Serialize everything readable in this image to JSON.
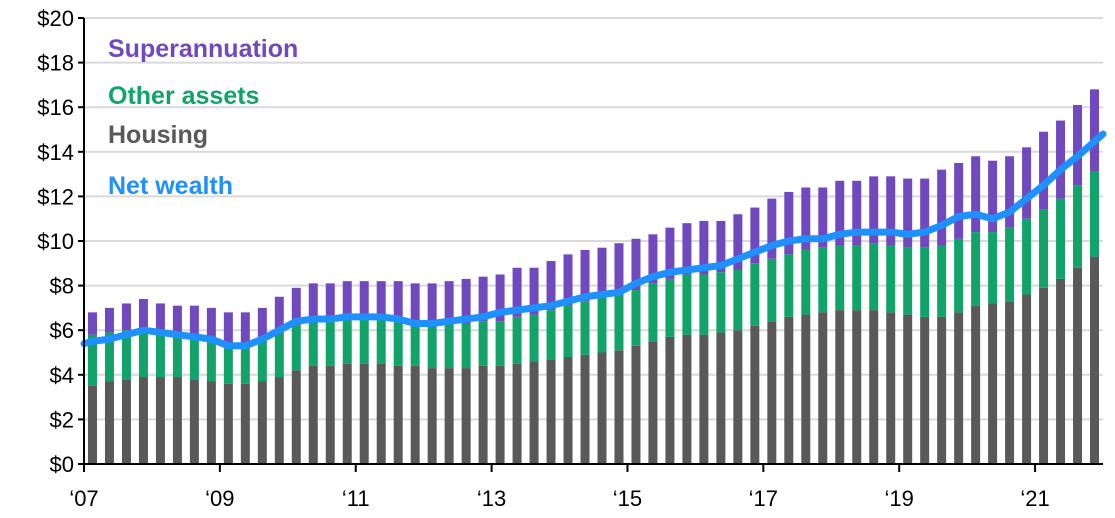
{
  "chart_data": {
    "type": "bar",
    "stacked": true,
    "title": "",
    "xlabel": "",
    "ylabel": "",
    "ylim": [
      0,
      20
    ],
    "y_ticks": [
      "$0",
      "$2",
      "$4",
      "$6",
      "$8",
      "$10",
      "$12",
      "$14",
      "$16",
      "$18",
      "$20"
    ],
    "x_ticks": [
      "‘07",
      "‘09",
      "‘11",
      "‘13",
      "‘15",
      "‘17",
      "‘19",
      "‘21"
    ],
    "grid": true,
    "legend_position": "top-left",
    "x_range": [
      2007.0,
      2022.0
    ],
    "x": [
      2007.125,
      2007.375,
      2007.625,
      2007.875,
      2008.125,
      2008.375,
      2008.625,
      2008.875,
      2009.125,
      2009.375,
      2009.625,
      2009.875,
      2010.125,
      2010.375,
      2010.625,
      2010.875,
      2011.125,
      2011.375,
      2011.625,
      2011.875,
      2012.125,
      2012.375,
      2012.625,
      2012.875,
      2013.125,
      2013.375,
      2013.625,
      2013.875,
      2014.125,
      2014.375,
      2014.625,
      2014.875,
      2015.125,
      2015.375,
      2015.625,
      2015.875,
      2016.125,
      2016.375,
      2016.625,
      2016.875,
      2017.125,
      2017.375,
      2017.625,
      2017.875,
      2018.125,
      2018.375,
      2018.625,
      2018.875,
      2019.125,
      2019.375,
      2019.625,
      2019.875,
      2020.125,
      2020.375,
      2020.625,
      2020.875,
      2021.125,
      2021.375,
      2021.625,
      2021.875
    ],
    "series": [
      {
        "name": "Housing",
        "color": "#595959",
        "values": [
          3.5,
          3.7,
          3.8,
          3.9,
          3.9,
          3.9,
          3.8,
          3.7,
          3.6,
          3.6,
          3.7,
          3.9,
          4.2,
          4.4,
          4.4,
          4.5,
          4.5,
          4.5,
          4.4,
          4.4,
          4.3,
          4.3,
          4.3,
          4.4,
          4.4,
          4.5,
          4.6,
          4.7,
          4.8,
          4.9,
          5.0,
          5.1,
          5.3,
          5.5,
          5.7,
          5.8,
          5.8,
          5.9,
          6.0,
          6.2,
          6.4,
          6.6,
          6.7,
          6.8,
          6.9,
          6.9,
          6.9,
          6.8,
          6.7,
          6.6,
          6.6,
          6.8,
          7.1,
          7.2,
          7.3,
          7.6,
          7.9,
          8.3,
          8.8,
          9.3
        ]
      },
      {
        "name": "Other assets",
        "color": "#12a36b",
        "values": [
          2.3,
          2.2,
          2.2,
          2.2,
          2.0,
          2.0,
          2.0,
          1.9,
          1.8,
          1.8,
          1.9,
          2.0,
          2.0,
          2.0,
          2.0,
          2.0,
          2.0,
          2.0,
          2.0,
          1.9,
          1.9,
          2.0,
          2.0,
          2.0,
          2.0,
          2.1,
          2.1,
          2.2,
          2.3,
          2.4,
          2.5,
          2.5,
          2.5,
          2.6,
          2.6,
          2.7,
          2.7,
          2.7,
          2.7,
          2.8,
          2.8,
          2.8,
          2.9,
          2.9,
          2.9,
          2.9,
          3.0,
          3.0,
          3.0,
          3.1,
          3.2,
          3.3,
          3.3,
          3.2,
          3.3,
          3.4,
          3.5,
          3.6,
          3.7,
          3.8
        ]
      },
      {
        "name": "Superannuation",
        "color": "#7049bf",
        "values": [
          1.0,
          1.1,
          1.2,
          1.3,
          1.3,
          1.2,
          1.3,
          1.4,
          1.4,
          1.4,
          1.4,
          1.6,
          1.7,
          1.7,
          1.7,
          1.7,
          1.7,
          1.7,
          1.8,
          1.8,
          1.9,
          1.9,
          2.0,
          2.0,
          2.1,
          2.2,
          2.1,
          2.2,
          2.3,
          2.3,
          2.2,
          2.3,
          2.3,
          2.2,
          2.3,
          2.3,
          2.4,
          2.3,
          2.5,
          2.5,
          2.7,
          2.8,
          2.8,
          2.7,
          2.9,
          2.9,
          3.0,
          3.1,
          3.1,
          3.1,
          3.4,
          3.4,
          3.4,
          3.2,
          3.2,
          3.2,
          3.5,
          3.5,
          3.6,
          3.7
        ]
      }
    ],
    "line": {
      "name": "Net wealth",
      "color": "#1e90ff",
      "x": [
        2007.0,
        2007.125,
        2007.375,
        2007.625,
        2007.875,
        2008.125,
        2008.375,
        2008.625,
        2008.875,
        2009.125,
        2009.375,
        2009.625,
        2009.875,
        2010.125,
        2010.375,
        2010.625,
        2010.875,
        2011.125,
        2011.375,
        2011.625,
        2011.875,
        2012.125,
        2012.375,
        2012.625,
        2012.875,
        2013.125,
        2013.375,
        2013.625,
        2013.875,
        2014.125,
        2014.375,
        2014.625,
        2014.875,
        2015.125,
        2015.375,
        2015.625,
        2015.875,
        2016.125,
        2016.375,
        2016.625,
        2016.875,
        2017.125,
        2017.375,
        2017.625,
        2017.875,
        2018.125,
        2018.375,
        2018.625,
        2018.875,
        2019.125,
        2019.375,
        2019.625,
        2019.875,
        2020.125,
        2020.375,
        2020.625,
        2020.875,
        2021.125,
        2021.375,
        2021.625,
        2022.0
      ],
      "values": [
        5.4,
        5.5,
        5.6,
        5.8,
        6.0,
        5.9,
        5.8,
        5.7,
        5.6,
        5.3,
        5.3,
        5.6,
        6.0,
        6.4,
        6.5,
        6.5,
        6.6,
        6.6,
        6.6,
        6.5,
        6.3,
        6.3,
        6.4,
        6.5,
        6.6,
        6.8,
        6.9,
        7.0,
        7.1,
        7.3,
        7.5,
        7.6,
        7.7,
        8.1,
        8.4,
        8.6,
        8.7,
        8.8,
        8.9,
        9.2,
        9.5,
        9.8,
        10.0,
        10.1,
        10.1,
        10.3,
        10.4,
        10.4,
        10.4,
        10.3,
        10.4,
        10.7,
        11.1,
        11.2,
        11.0,
        11.3,
        11.9,
        12.5,
        13.2,
        13.8,
        14.8
      ]
    }
  }
}
